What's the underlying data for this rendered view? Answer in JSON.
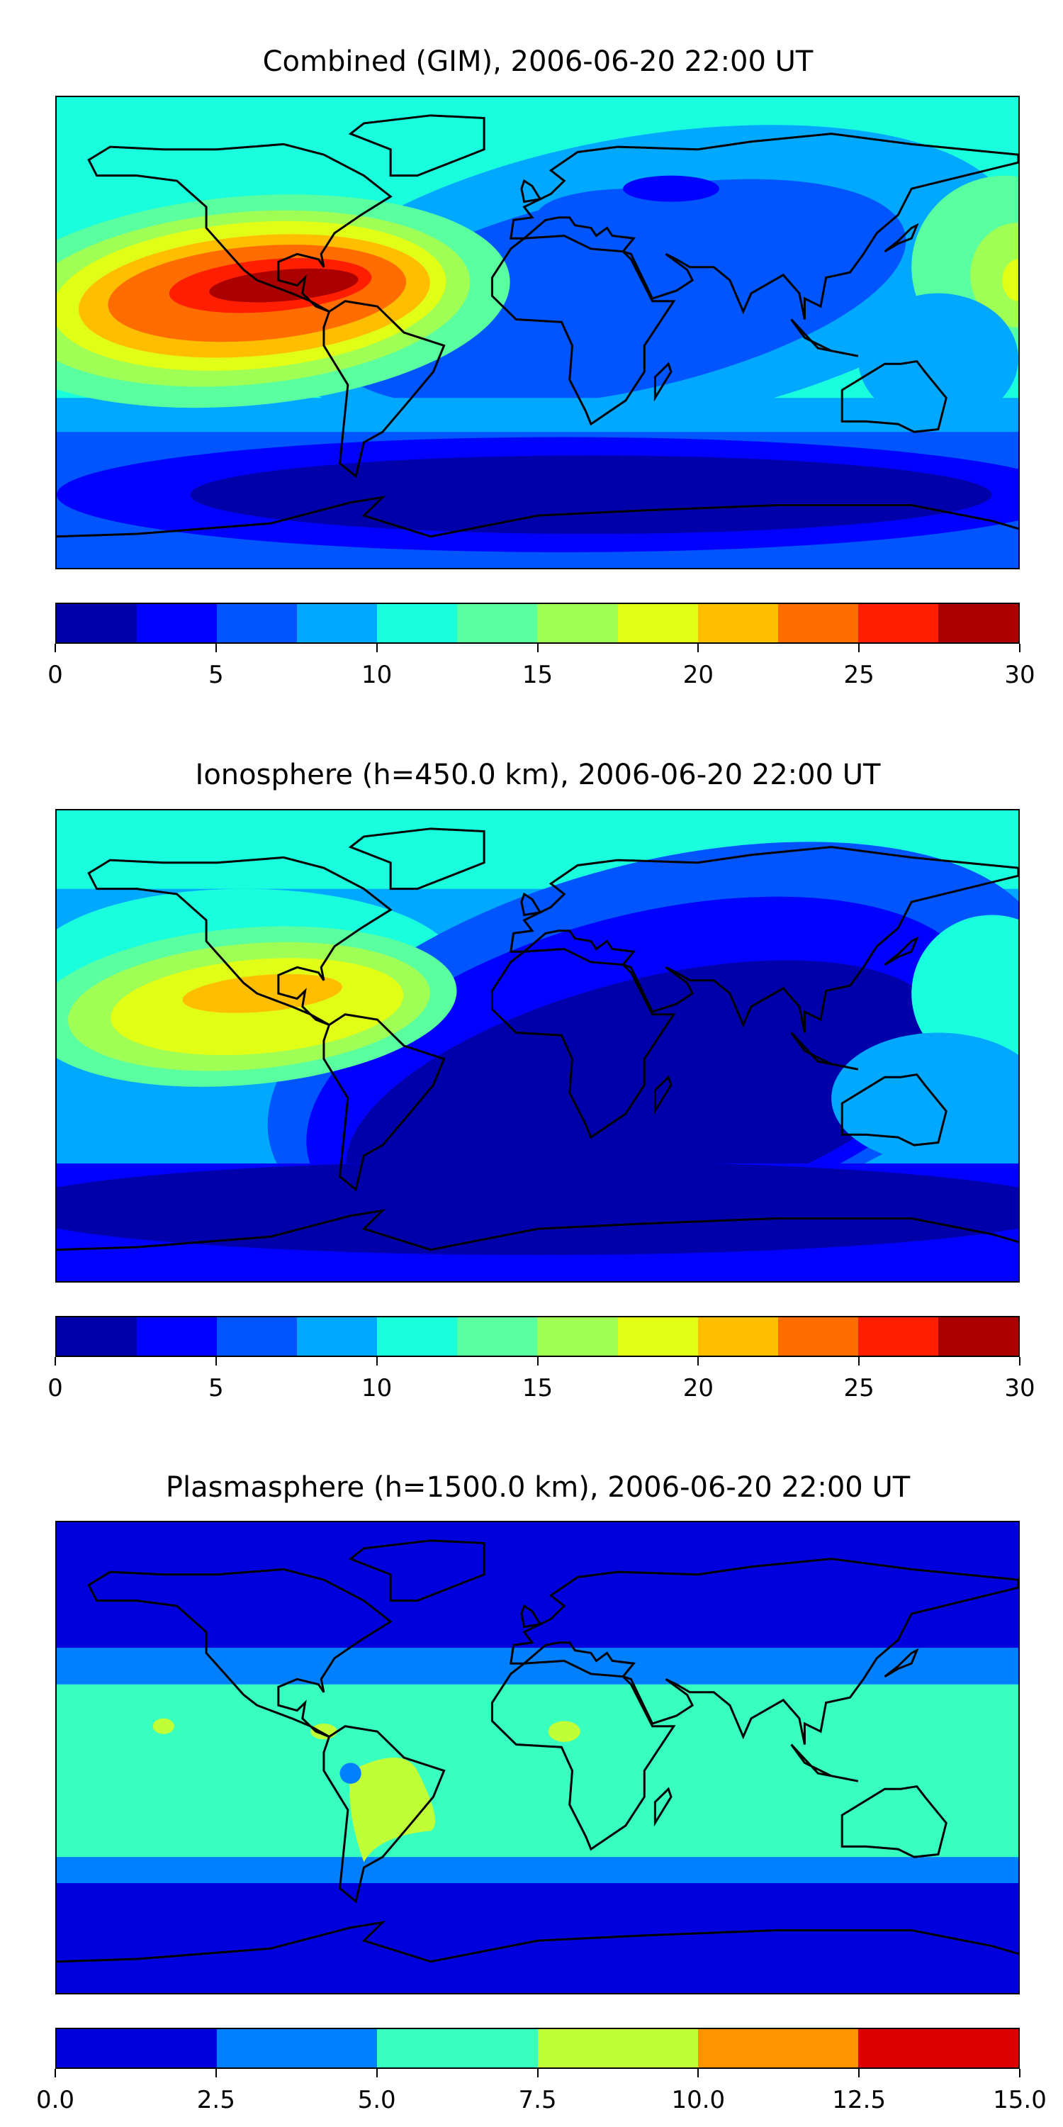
{
  "chart_data": [
    {
      "type": "heatmap",
      "subtype": "filled-contour-map",
      "title": "Combined (GIM), 2006-06-20 22:00 UT",
      "colorbar": {
        "ticks": [
          "0",
          "5",
          "10",
          "15",
          "20",
          "25",
          "30"
        ],
        "range": [
          0,
          30
        ],
        "levels": [
          0,
          2.5,
          5,
          7.5,
          10,
          12.5,
          15,
          17.5,
          20,
          22.5,
          25,
          27.5,
          30
        ],
        "colors": [
          "#0000aa",
          "#0000ff",
          "#0055ff",
          "#00a8ff",
          "#19ffde",
          "#5affa0",
          "#a0ff55",
          "#e1ff16",
          "#ffbf00",
          "#ff6d00",
          "#ff1e00",
          "#aa0000"
        ]
      },
      "features": "peak 27.5-30 over eastern Pacific/Central America; minimum 0-2.5 over southern high latitudes"
    },
    {
      "type": "heatmap",
      "subtype": "filled-contour-map",
      "title": "Ionosphere  (h=450.0 km), 2006-06-20 22:00 UT",
      "colorbar": {
        "ticks": [
          "0",
          "5",
          "10",
          "15",
          "20",
          "25",
          "30"
        ],
        "range": [
          0,
          30
        ],
        "levels": [
          0,
          2.5,
          5,
          7.5,
          10,
          12.5,
          15,
          17.5,
          20,
          22.5,
          25,
          27.5,
          30
        ],
        "colors": [
          "#0000aa",
          "#0000ff",
          "#0055ff",
          "#00a8ff",
          "#19ffde",
          "#5affa0",
          "#a0ff55",
          "#e1ff16",
          "#ffbf00",
          "#ff6d00",
          "#ff1e00",
          "#aa0000"
        ]
      },
      "features": "peak 20-22.5 over eastern Pacific; large 0-2.5 region over Atlantic/Africa/Indian Ocean"
    },
    {
      "type": "heatmap",
      "subtype": "filled-contour-map",
      "title": "Plasmasphere (h=1500.0 km), 2006-06-20 22:00 UT",
      "colorbar": {
        "ticks": [
          "0.0",
          "2.5",
          "5.0",
          "7.5",
          "10.0",
          "12.5",
          "15.0"
        ],
        "range": [
          0,
          15
        ],
        "levels": [
          0,
          2.5,
          5,
          7.5,
          10,
          12.5,
          15
        ],
        "colors": [
          "#0000dd",
          "#0080ff",
          "#38ffc0",
          "#c0ff38",
          "#ff9400",
          "#dd0000"
        ]
      },
      "features": "equatorial band 5-7.5, patches 7.5-10 over South America; high latitudes 0-2.5"
    }
  ]
}
